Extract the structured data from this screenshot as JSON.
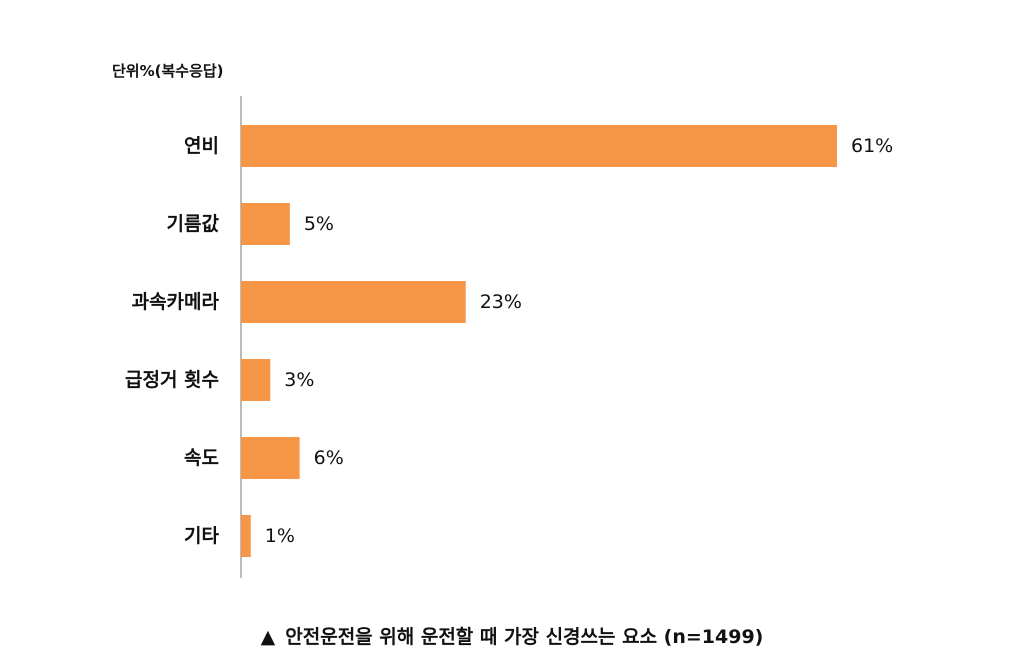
{
  "chart_data": {
    "type": "bar",
    "orientation": "horizontal",
    "unit_label": "단위%(복수응답)",
    "categories": [
      "연비",
      "기름값",
      "과속카메라",
      "급정거 횟수",
      "속도",
      "기타"
    ],
    "values": [
      61,
      5,
      23,
      3,
      6,
      1
    ],
    "value_labels": [
      "61%",
      "5%",
      "23%",
      "3%",
      "6%",
      "1%"
    ],
    "xlim": [
      0,
      61
    ],
    "grid": false,
    "legend": "none",
    "bar_color": "#F79646",
    "axis_color": "#A6A6A6"
  },
  "caption": {
    "marker": "▲",
    "text": "안전운전을 위해 운전할 때 가장 신경쓰는 요소  (n=1499)"
  }
}
